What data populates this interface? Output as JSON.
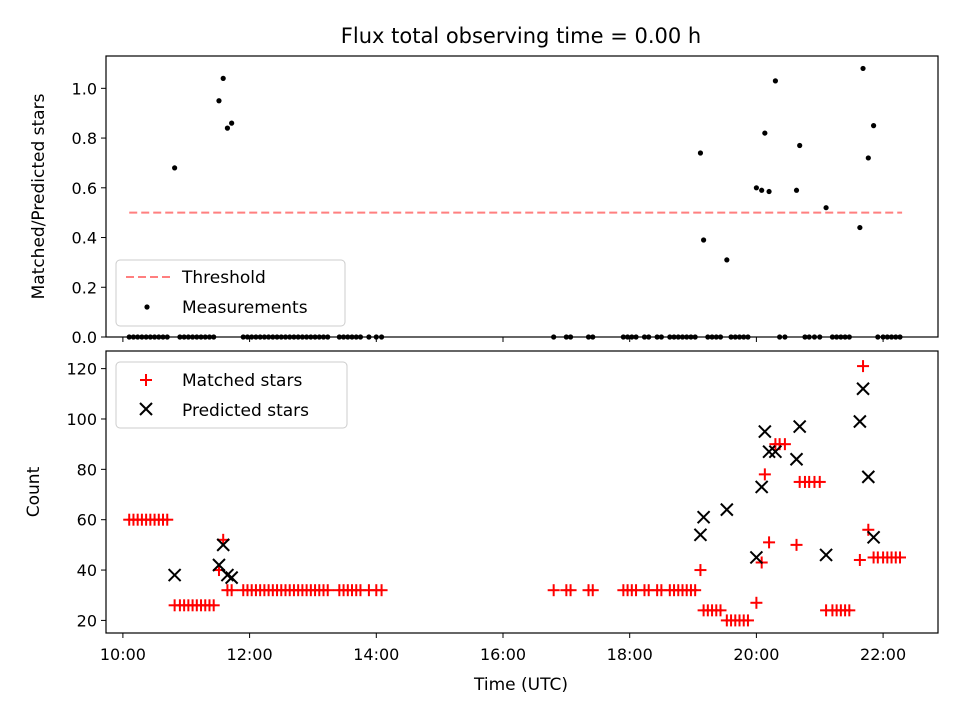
{
  "chart_data": [
    {
      "type": "scatter",
      "title": "Flux total observing time = 0.00 h",
      "ylabel": "Matched/Predicted stars",
      "xlabel": "",
      "xlim": [
        "09:44",
        "22:52"
      ],
      "ylim": [
        0,
        1.13
      ],
      "yticks": [
        0.0,
        0.2,
        0.4,
        0.6,
        0.8,
        1.0
      ],
      "legend_position": "lower-left",
      "threshold": {
        "name": "Threshold",
        "value": 0.5,
        "x_range": [
          "10:06",
          "22:18"
        ],
        "color": "#ff7f7f"
      },
      "series": [
        {
          "name": "Measurements",
          "color": "#000000",
          "points": [
            [
              "10:49",
              0.68
            ],
            [
              "11:31",
              0.95
            ],
            [
              "11:35",
              1.04
            ],
            [
              "11:39",
              0.84
            ],
            [
              "11:43",
              0.86
            ],
            [
              "19:07",
              0.74
            ],
            [
              "19:10",
              0.39
            ],
            [
              "19:32",
              0.31
            ],
            [
              "20:00",
              0.6
            ],
            [
              "20:05",
              0.59
            ],
            [
              "20:08",
              0.82
            ],
            [
              "20:12",
              0.585
            ],
            [
              "20:18",
              1.03
            ],
            [
              "20:38",
              0.59
            ],
            [
              "20:41",
              0.77
            ],
            [
              "21:06",
              0.52
            ],
            [
              "21:38",
              0.44
            ],
            [
              "21:41",
              1.08
            ],
            [
              "21:46",
              0.72
            ],
            [
              "21:51",
              0.85
            ],
            [
              "10:06",
              0
            ],
            [
              "10:10",
              0
            ],
            [
              "10:14",
              0
            ],
            [
              "10:18",
              0
            ],
            [
              "10:22",
              0
            ],
            [
              "10:26",
              0
            ],
            [
              "10:30",
              0
            ],
            [
              "10:34",
              0
            ],
            [
              "10:38",
              0
            ],
            [
              "10:42",
              0
            ],
            [
              "10:54",
              0
            ],
            [
              "10:58",
              0
            ],
            [
              "11:02",
              0
            ],
            [
              "11:06",
              0
            ],
            [
              "11:10",
              0
            ],
            [
              "11:14",
              0
            ],
            [
              "11:18",
              0
            ],
            [
              "11:22",
              0
            ],
            [
              "11:26",
              0
            ],
            [
              "11:54",
              0
            ],
            [
              "11:58",
              0
            ],
            [
              "12:02",
              0
            ],
            [
              "12:06",
              0
            ],
            [
              "12:10",
              0
            ],
            [
              "12:14",
              0
            ],
            [
              "12:18",
              0
            ],
            [
              "12:22",
              0
            ],
            [
              "12:26",
              0
            ],
            [
              "12:30",
              0
            ],
            [
              "12:34",
              0
            ],
            [
              "12:38",
              0
            ],
            [
              "12:42",
              0
            ],
            [
              "12:46",
              0
            ],
            [
              "12:50",
              0
            ],
            [
              "12:54",
              0
            ],
            [
              "12:58",
              0
            ],
            [
              "13:02",
              0
            ],
            [
              "13:06",
              0
            ],
            [
              "13:10",
              0
            ],
            [
              "13:14",
              0
            ],
            [
              "13:25",
              0
            ],
            [
              "13:29",
              0
            ],
            [
              "13:33",
              0
            ],
            [
              "13:37",
              0
            ],
            [
              "13:41",
              0
            ],
            [
              "13:45",
              0
            ],
            [
              "13:53",
              0
            ],
            [
              "14:00",
              0
            ],
            [
              "14:05",
              0
            ],
            [
              "16:48",
              0
            ],
            [
              "17:00",
              0
            ],
            [
              "17:04",
              0
            ],
            [
              "17:21",
              0
            ],
            [
              "17:25",
              0
            ],
            [
              "17:54",
              0
            ],
            [
              "17:58",
              0
            ],
            [
              "18:02",
              0
            ],
            [
              "18:06",
              0
            ],
            [
              "18:14",
              0
            ],
            [
              "18:18",
              0
            ],
            [
              "18:26",
              0
            ],
            [
              "18:30",
              0
            ],
            [
              "18:38",
              0
            ],
            [
              "18:42",
              0
            ],
            [
              "18:46",
              0
            ],
            [
              "18:50",
              0
            ],
            [
              "18:54",
              0
            ],
            [
              "18:58",
              0
            ],
            [
              "19:02",
              0
            ],
            [
              "19:14",
              0
            ],
            [
              "19:18",
              0
            ],
            [
              "19:22",
              0
            ],
            [
              "19:26",
              0
            ],
            [
              "19:36",
              0
            ],
            [
              "19:40",
              0
            ],
            [
              "19:44",
              0
            ],
            [
              "19:48",
              0
            ],
            [
              "19:52",
              0
            ],
            [
              "20:22",
              0
            ],
            [
              "20:27",
              0
            ],
            [
              "20:46",
              0
            ],
            [
              "20:50",
              0
            ],
            [
              "20:55",
              0
            ],
            [
              "21:00",
              0
            ],
            [
              "21:12",
              0
            ],
            [
              "21:16",
              0
            ],
            [
              "21:20",
              0
            ],
            [
              "21:24",
              0
            ],
            [
              "21:28",
              0
            ],
            [
              "21:55",
              0
            ],
            [
              "22:00",
              0
            ],
            [
              "22:04",
              0
            ],
            [
              "22:08",
              0
            ],
            [
              "22:12",
              0
            ],
            [
              "22:16",
              0
            ]
          ]
        }
      ]
    },
    {
      "type": "scatter",
      "title": "",
      "ylabel": "Count",
      "xlabel": "Time (UTC)",
      "xlim": [
        "09:44",
        "22:52"
      ],
      "ylim": [
        15,
        127
      ],
      "yticks": [
        20,
        40,
        60,
        80,
        100,
        120
      ],
      "xticks": [
        "10:00",
        "12:00",
        "14:00",
        "16:00",
        "18:00",
        "20:00",
        "22:00"
      ],
      "legend_position": "upper-left",
      "series": [
        {
          "name": "Matched stars",
          "color": "#ff0000",
          "marker": "+",
          "points": [
            [
              "10:06",
              60
            ],
            [
              "10:10",
              60
            ],
            [
              "10:14",
              60
            ],
            [
              "10:18",
              60
            ],
            [
              "10:22",
              60
            ],
            [
              "10:26",
              60
            ],
            [
              "10:30",
              60
            ],
            [
              "10:34",
              60
            ],
            [
              "10:38",
              60
            ],
            [
              "10:42",
              60
            ],
            [
              "10:49",
              26
            ],
            [
              "10:54",
              26
            ],
            [
              "10:58",
              26
            ],
            [
              "11:02",
              26
            ],
            [
              "11:06",
              26
            ],
            [
              "11:10",
              26
            ],
            [
              "11:14",
              26
            ],
            [
              "11:18",
              26
            ],
            [
              "11:22",
              26
            ],
            [
              "11:26",
              26
            ],
            [
              "11:31",
              40
            ],
            [
              "11:35",
              52
            ],
            [
              "11:39",
              32
            ],
            [
              "11:43",
              32
            ],
            [
              "11:54",
              32
            ],
            [
              "11:58",
              32
            ],
            [
              "12:02",
              32
            ],
            [
              "12:06",
              32
            ],
            [
              "12:10",
              32
            ],
            [
              "12:14",
              32
            ],
            [
              "12:18",
              32
            ],
            [
              "12:22",
              32
            ],
            [
              "12:26",
              32
            ],
            [
              "12:30",
              32
            ],
            [
              "12:34",
              32
            ],
            [
              "12:38",
              32
            ],
            [
              "12:42",
              32
            ],
            [
              "12:46",
              32
            ],
            [
              "12:50",
              32
            ],
            [
              "12:54",
              32
            ],
            [
              "12:58",
              32
            ],
            [
              "13:02",
              32
            ],
            [
              "13:06",
              32
            ],
            [
              "13:10",
              32
            ],
            [
              "13:14",
              32
            ],
            [
              "13:25",
              32
            ],
            [
              "13:29",
              32
            ],
            [
              "13:33",
              32
            ],
            [
              "13:37",
              32
            ],
            [
              "13:41",
              32
            ],
            [
              "13:45",
              32
            ],
            [
              "13:53",
              32
            ],
            [
              "14:00",
              32
            ],
            [
              "14:05",
              32
            ],
            [
              "16:48",
              32
            ],
            [
              "17:00",
              32
            ],
            [
              "17:04",
              32
            ],
            [
              "17:21",
              32
            ],
            [
              "17:25",
              32
            ],
            [
              "17:54",
              32
            ],
            [
              "17:58",
              32
            ],
            [
              "18:02",
              32
            ],
            [
              "18:06",
              32
            ],
            [
              "18:14",
              32
            ],
            [
              "18:18",
              32
            ],
            [
              "18:26",
              32
            ],
            [
              "18:30",
              32
            ],
            [
              "18:38",
              32
            ],
            [
              "18:42",
              32
            ],
            [
              "18:46",
              32
            ],
            [
              "18:50",
              32
            ],
            [
              "18:54",
              32
            ],
            [
              "18:58",
              32
            ],
            [
              "19:02",
              32
            ],
            [
              "19:07",
              40
            ],
            [
              "19:10",
              24
            ],
            [
              "19:14",
              24
            ],
            [
              "19:18",
              24
            ],
            [
              "19:22",
              24
            ],
            [
              "19:26",
              24
            ],
            [
              "19:32",
              20
            ],
            [
              "19:36",
              20
            ],
            [
              "19:40",
              20
            ],
            [
              "19:44",
              20
            ],
            [
              "19:48",
              20
            ],
            [
              "19:52",
              20
            ],
            [
              "20:00",
              27
            ],
            [
              "20:05",
              43
            ],
            [
              "20:08",
              78
            ],
            [
              "20:12",
              51
            ],
            [
              "20:18",
              90
            ],
            [
              "20:22",
              90
            ],
            [
              "20:27",
              90
            ],
            [
              "20:38",
              50
            ],
            [
              "20:41",
              75
            ],
            [
              "20:46",
              75
            ],
            [
              "20:50",
              75
            ],
            [
              "20:55",
              75
            ],
            [
              "21:00",
              75
            ],
            [
              "21:06",
              24
            ],
            [
              "21:12",
              24
            ],
            [
              "21:16",
              24
            ],
            [
              "21:20",
              24
            ],
            [
              "21:24",
              24
            ],
            [
              "21:28",
              24
            ],
            [
              "21:38",
              44
            ],
            [
              "21:41",
              121
            ],
            [
              "21:46",
              56
            ],
            [
              "21:51",
              45
            ],
            [
              "21:55",
              45
            ],
            [
              "22:00",
              45
            ],
            [
              "22:04",
              45
            ],
            [
              "22:08",
              45
            ],
            [
              "22:12",
              45
            ],
            [
              "22:16",
              45
            ]
          ]
        },
        {
          "name": "Predicted stars",
          "color": "#000000",
          "marker": "x",
          "points": [
            [
              "10:49",
              38
            ],
            [
              "11:31",
              42
            ],
            [
              "11:35",
              50
            ],
            [
              "11:39",
              38
            ],
            [
              "11:43",
              37
            ],
            [
              "19:07",
              54
            ],
            [
              "19:10",
              61
            ],
            [
              "19:32",
              64
            ],
            [
              "20:00",
              45
            ],
            [
              "20:05",
              73
            ],
            [
              "20:08",
              95
            ],
            [
              "20:12",
              87
            ],
            [
              "20:18",
              87
            ],
            [
              "20:38",
              84
            ],
            [
              "20:41",
              97
            ],
            [
              "21:06",
              46
            ],
            [
              "21:38",
              99
            ],
            [
              "21:41",
              112
            ],
            [
              "21:46",
              77
            ],
            [
              "21:51",
              53
            ]
          ]
        }
      ]
    }
  ]
}
